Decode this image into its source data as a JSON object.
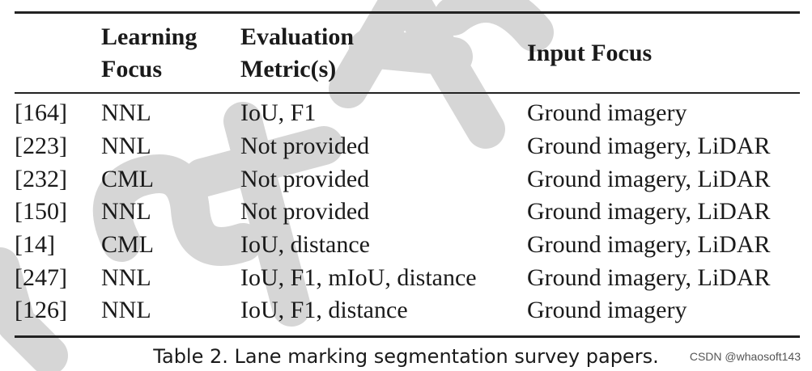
{
  "table": {
    "headers": [
      [
        "",
        ""
      ],
      [
        "Learning",
        "Focus"
      ],
      [
        "Evaluation",
        "Metric(s)"
      ],
      [
        "Input Focus"
      ]
    ],
    "rows": [
      [
        "[164]",
        "NNL",
        "IoU, F1",
        "Ground imagery"
      ],
      [
        "[223]",
        "NNL",
        "Not provided",
        "Ground imagery, LiDAR"
      ],
      [
        "[232]",
        "CML",
        "Not provided",
        "Ground imagery, LiDAR"
      ],
      [
        "[150]",
        "NNL",
        "Not provided",
        "Ground imagery, LiDAR"
      ],
      [
        "[14]",
        "CML",
        "IoU, distance",
        "Ground imagery, LiDAR"
      ],
      [
        "[247]",
        "NNL",
        "IoU, F1, mIoU, distance",
        "Ground imagery, LiDAR"
      ],
      [
        "[126]",
        "NNL",
        "IoU, F1, distance",
        "Ground imagery"
      ]
    ]
  },
  "caption": "Table 2.  Lane marking segmentation survey papers.",
  "credit": "CSDN @whaosoft143",
  "watermark": {
    "color": "#d9d9d9"
  }
}
